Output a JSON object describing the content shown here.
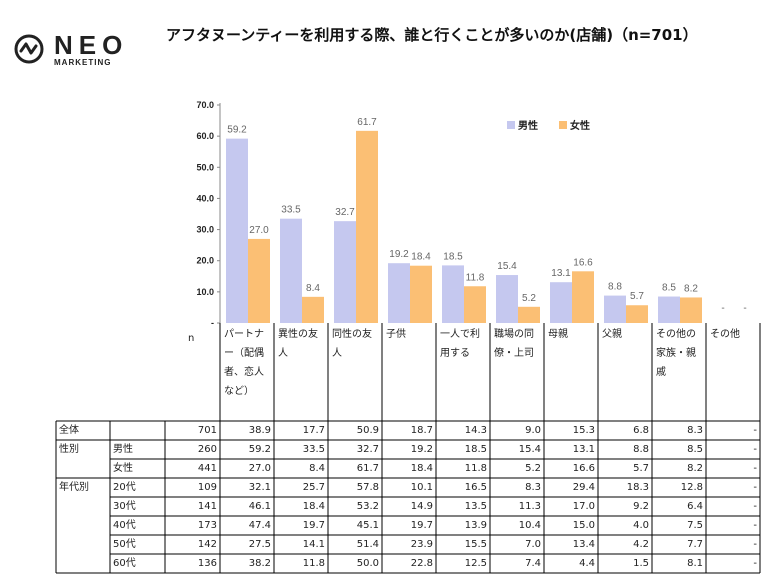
{
  "header": {
    "logo_text": "NEO",
    "logo_sub": "MARKETING",
    "title": "アフタヌーンティーを利用する際、誰と行くことが多いのか(店舗)（n=701）"
  },
  "colors": {
    "male": "#c5c8ef",
    "female": "#fbbf74",
    "axis": "#888888",
    "grid_line": "#000000"
  },
  "chart_data": {
    "type": "bar",
    "categories": [
      "パートナー（配偶者、恋人など）",
      "異性の友人",
      "同性の友人",
      "子供",
      "一人で利用する",
      "職場の同僚・上司",
      "母親",
      "父親",
      "その他の家族・親戚",
      "その他"
    ],
    "series": [
      {
        "name": "男性",
        "values": [
          59.2,
          33.5,
          32.7,
          19.2,
          18.5,
          15.4,
          13.1,
          8.8,
          8.5,
          null
        ],
        "labels": [
          "59.2",
          "33.5",
          "32.7",
          "19.2",
          "18.5",
          "15.4",
          "13.1",
          "8.8",
          "8.5",
          "-"
        ]
      },
      {
        "name": "女性",
        "values": [
          27.0,
          8.4,
          61.7,
          18.4,
          11.8,
          5.2,
          16.6,
          5.7,
          8.2,
          null
        ],
        "labels": [
          "27.0",
          "8.4",
          "61.7",
          "18.4",
          "11.8",
          "5.2",
          "16.6",
          "5.7",
          "8.2",
          "-"
        ]
      }
    ],
    "yticks": [
      "70.0",
      "60.0",
      "50.0",
      "40.0",
      "30.0",
      "20.0",
      "10.0",
      "-"
    ],
    "ylim": [
      0,
      70
    ],
    "legend_position": "top-right"
  },
  "table": {
    "n_label": "n",
    "headers": [
      "パートナー（配偶者、恋人など）",
      "異性の友人",
      "同性の友人",
      "子供",
      "一人で利用する",
      "職場の同僚・上司",
      "母親",
      "父親",
      "その他の家族・親戚",
      "その他"
    ],
    "rows": [
      {
        "group": "全体",
        "sub": "",
        "n": "701",
        "values": [
          "38.9",
          "17.7",
          "50.9",
          "18.7",
          "14.3",
          "9.0",
          "15.3",
          "6.8",
          "8.3",
          "-"
        ]
      },
      {
        "group": "性別",
        "sub": "男性",
        "n": "260",
        "values": [
          "59.2",
          "33.5",
          "32.7",
          "19.2",
          "18.5",
          "15.4",
          "13.1",
          "8.8",
          "8.5",
          "-"
        ]
      },
      {
        "group": "",
        "sub": "女性",
        "n": "441",
        "values": [
          "27.0",
          "8.4",
          "61.7",
          "18.4",
          "11.8",
          "5.2",
          "16.6",
          "5.7",
          "8.2",
          "-"
        ]
      },
      {
        "group": "年代別",
        "sub": "20代",
        "n": "109",
        "values": [
          "32.1",
          "25.7",
          "57.8",
          "10.1",
          "16.5",
          "8.3",
          "29.4",
          "18.3",
          "12.8",
          "-"
        ]
      },
      {
        "group": "",
        "sub": "30代",
        "n": "141",
        "values": [
          "46.1",
          "18.4",
          "53.2",
          "14.9",
          "13.5",
          "11.3",
          "17.0",
          "9.2",
          "6.4",
          "-"
        ]
      },
      {
        "group": "",
        "sub": "40代",
        "n": "173",
        "values": [
          "47.4",
          "19.7",
          "45.1",
          "19.7",
          "13.9",
          "10.4",
          "15.0",
          "4.0",
          "7.5",
          "-"
        ]
      },
      {
        "group": "",
        "sub": "50代",
        "n": "142",
        "values": [
          "27.5",
          "14.1",
          "51.4",
          "23.9",
          "15.5",
          "7.0",
          "13.4",
          "4.2",
          "7.7",
          "-"
        ]
      },
      {
        "group": "",
        "sub": "60代",
        "n": "136",
        "values": [
          "38.2",
          "11.8",
          "50.0",
          "22.8",
          "12.5",
          "7.4",
          "4.4",
          "1.5",
          "8.1",
          "-"
        ]
      }
    ]
  }
}
